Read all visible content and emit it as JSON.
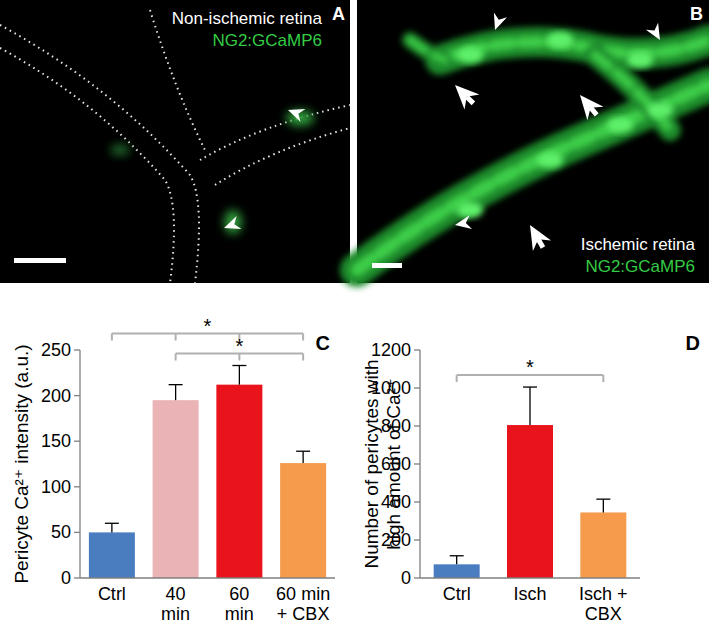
{
  "images": [
    {
      "label": "A",
      "title": "Non-ischemic retina",
      "subtitle": "NG2:GCaMP6"
    },
    {
      "label": "B",
      "title": "Ischemic retina",
      "subtitle": "NG2:GCaMP6"
    }
  ],
  "chart_data": [
    {
      "type": "bar",
      "title": "C",
      "y_label": "Pericyte Ca²⁺ intensity (a.u.)",
      "categories": [
        "Ctrl",
        "40\nmin",
        "60\nmin",
        "60 min\n+ CBX"
      ],
      "values": [
        50,
        195,
        212,
        126
      ],
      "errors": [
        10,
        17,
        21,
        13
      ],
      "colors": [
        "#4a7dc0",
        "#eab3b6",
        "#e8131b",
        "#f59b4b"
      ],
      "ylim": [
        0,
        250
      ],
      "yticks": [
        0,
        50,
        100,
        150,
        200,
        250
      ],
      "annotations": [
        {
          "text": "*",
          "from": [
            0
          ],
          "to": [
            1,
            2,
            3
          ]
        },
        {
          "text": "*",
          "from": [
            1,
            2
          ],
          "to": [
            3
          ]
        }
      ]
    },
    {
      "type": "bar",
      "title": "D",
      "y_label": "Number of pericytes with\nhigh amount of Ca²⁺",
      "categories": [
        "Ctrl",
        "Isch",
        "Isch +\nCBX"
      ],
      "values": [
        72,
        805,
        345
      ],
      "errors": [
        45,
        200,
        70
      ],
      "colors": [
        "#4a7dc0",
        "#e8131b",
        "#f59b4b"
      ],
      "ylim": [
        0,
        1200
      ],
      "yticks": [
        0,
        200,
        400,
        600,
        800,
        1000,
        1200
      ],
      "annotations": [
        {
          "text": "*",
          "from": [
            0
          ],
          "to": [
            2
          ]
        }
      ]
    }
  ]
}
